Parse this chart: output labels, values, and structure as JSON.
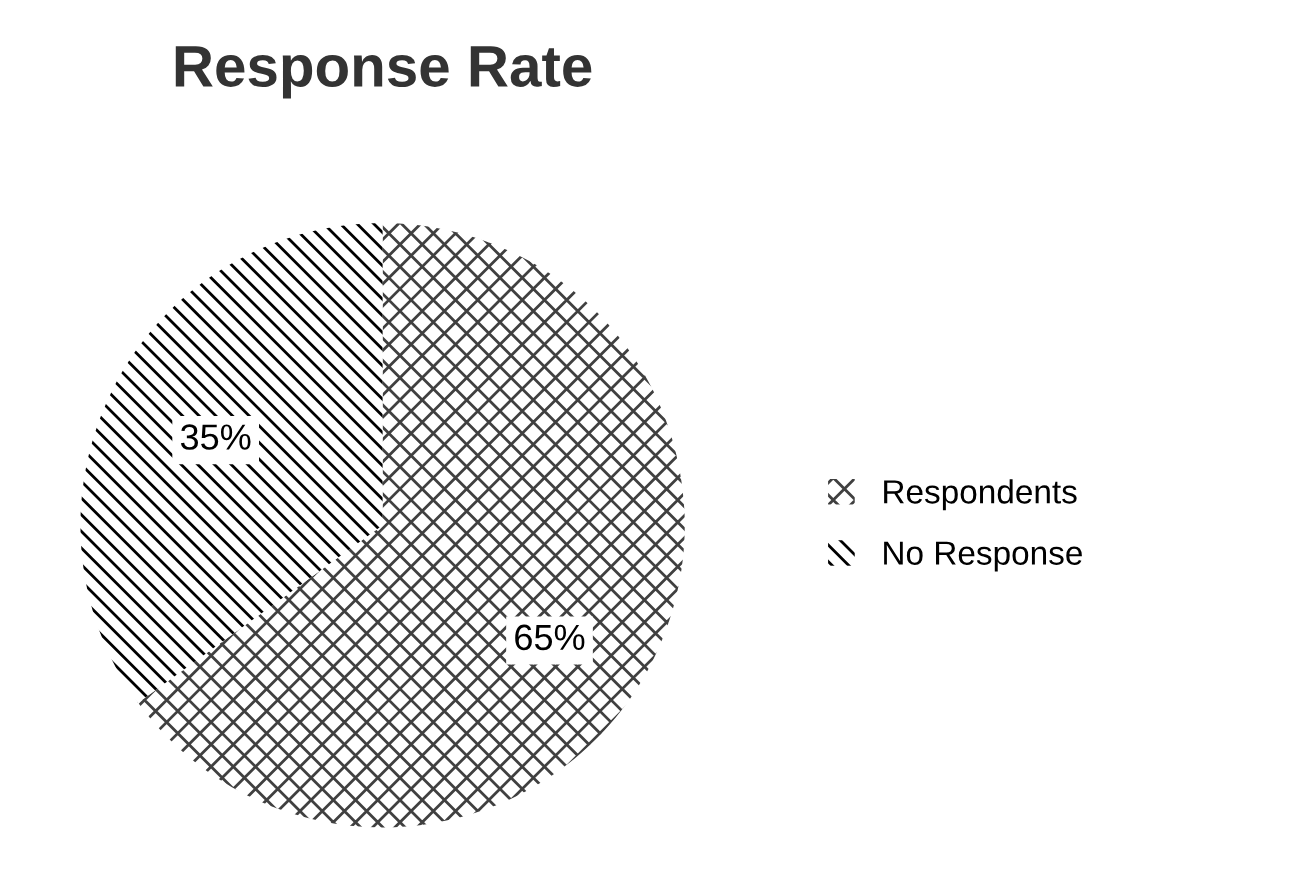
{
  "chart_data": {
    "type": "pie",
    "title": "Response Rate",
    "categories": [
      "Respondents",
      "No Response"
    ],
    "values": [
      65,
      35
    ],
    "colors": [
      "#404040",
      "#000000"
    ],
    "value_labels": [
      "65%",
      "35%"
    ],
    "legend": "right"
  }
}
